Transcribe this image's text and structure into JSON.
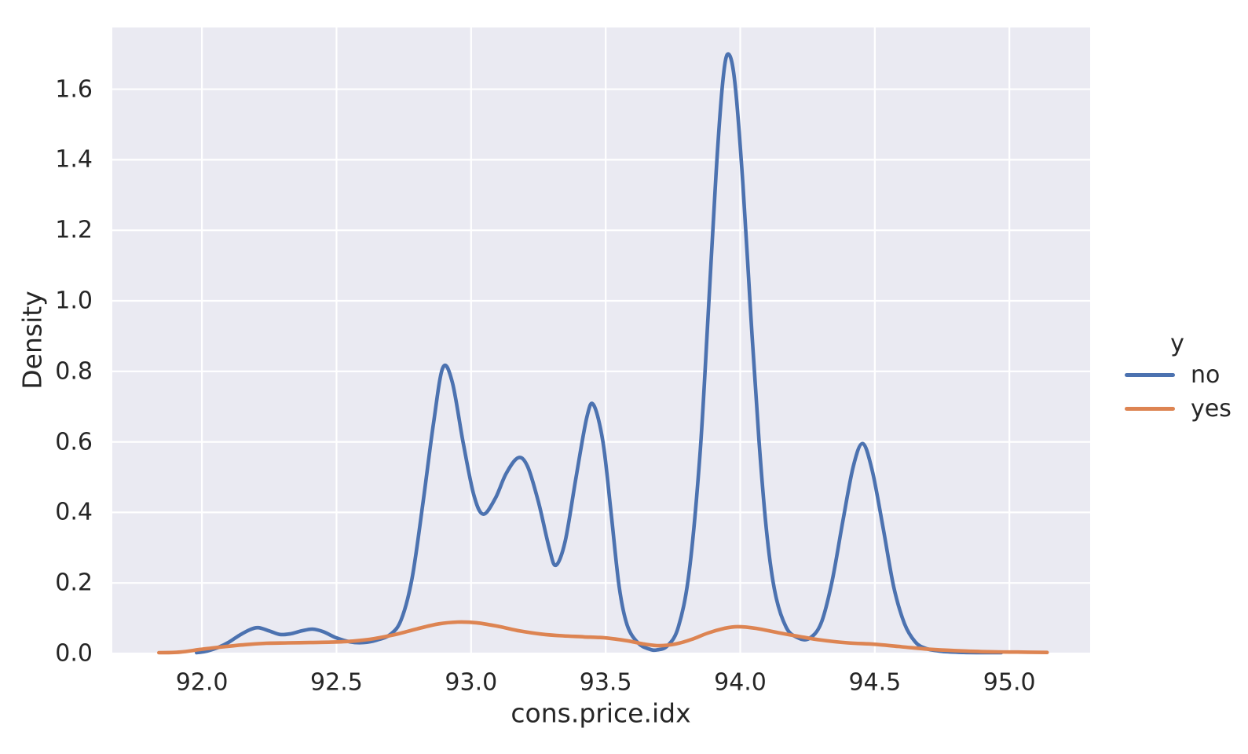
{
  "figure": {
    "background": "#ffffff",
    "plot_background": "#eaeaf2",
    "grid_color": "#ffffff",
    "text_color": "#262626"
  },
  "legend": {
    "title": "y",
    "items": [
      {
        "label": "no",
        "color": "#4c72b0"
      },
      {
        "label": "yes",
        "color": "#dd8452"
      }
    ]
  },
  "chart_data": {
    "type": "line",
    "subtype": "kde-density",
    "title": "",
    "xlabel": "cons.price.idx",
    "ylabel": "Density",
    "legend_title": "y",
    "legend_position": "right-outside",
    "grid": true,
    "xlim": [
      91.667,
      95.3
    ],
    "ylim": [
      0,
      1.775
    ],
    "xticks": [
      92.0,
      92.5,
      93.0,
      93.5,
      94.0,
      94.5,
      95.0
    ],
    "xtick_labels": [
      "92.0",
      "92.5",
      "93.0",
      "93.5",
      "94.0",
      "94.5",
      "95.0"
    ],
    "yticks": [
      0.0,
      0.2,
      0.4,
      0.6,
      0.8,
      1.0,
      1.2,
      1.4,
      1.6
    ],
    "ytick_labels": [
      "0.0",
      "0.2",
      "0.4",
      "0.6",
      "0.8",
      "1.0",
      "1.2",
      "1.4",
      "1.6"
    ],
    "series": [
      {
        "name": "no",
        "color": "#4c72b0",
        "points": [
          [
            91.98,
            0.002
          ],
          [
            92.02,
            0.007
          ],
          [
            92.06,
            0.017
          ],
          [
            92.1,
            0.032
          ],
          [
            92.14,
            0.052
          ],
          [
            92.18,
            0.068
          ],
          [
            92.21,
            0.073
          ],
          [
            92.25,
            0.064
          ],
          [
            92.29,
            0.054
          ],
          [
            92.33,
            0.056
          ],
          [
            92.37,
            0.064
          ],
          [
            92.41,
            0.069
          ],
          [
            92.45,
            0.062
          ],
          [
            92.5,
            0.044
          ],
          [
            92.55,
            0.033
          ],
          [
            92.6,
            0.031
          ],
          [
            92.65,
            0.038
          ],
          [
            92.7,
            0.054
          ],
          [
            92.74,
            0.095
          ],
          [
            92.78,
            0.21
          ],
          [
            92.82,
            0.42
          ],
          [
            92.86,
            0.65
          ],
          [
            92.895,
            0.81
          ],
          [
            92.93,
            0.77
          ],
          [
            92.97,
            0.6
          ],
          [
            93.01,
            0.45
          ],
          [
            93.045,
            0.395
          ],
          [
            93.09,
            0.44
          ],
          [
            93.13,
            0.51
          ],
          [
            93.175,
            0.555
          ],
          [
            93.21,
            0.53
          ],
          [
            93.25,
            0.43
          ],
          [
            93.29,
            0.3
          ],
          [
            93.315,
            0.25
          ],
          [
            93.35,
            0.32
          ],
          [
            93.39,
            0.5
          ],
          [
            93.43,
            0.67
          ],
          [
            93.455,
            0.705
          ],
          [
            93.49,
            0.6
          ],
          [
            93.52,
            0.4
          ],
          [
            93.55,
            0.19
          ],
          [
            93.58,
            0.08
          ],
          [
            93.62,
            0.03
          ],
          [
            93.66,
            0.013
          ],
          [
            93.69,
            0.01
          ],
          [
            93.73,
            0.022
          ],
          [
            93.77,
            0.075
          ],
          [
            93.81,
            0.23
          ],
          [
            93.85,
            0.56
          ],
          [
            93.88,
            0.95
          ],
          [
            93.91,
            1.36
          ],
          [
            93.935,
            1.62
          ],
          [
            93.955,
            1.7
          ],
          [
            93.98,
            1.62
          ],
          [
            94.01,
            1.33
          ],
          [
            94.04,
            0.95
          ],
          [
            94.07,
            0.6
          ],
          [
            94.1,
            0.33
          ],
          [
            94.13,
            0.17
          ],
          [
            94.17,
            0.075
          ],
          [
            94.21,
            0.046
          ],
          [
            94.255,
            0.042
          ],
          [
            94.3,
            0.085
          ],
          [
            94.34,
            0.2
          ],
          [
            94.38,
            0.37
          ],
          [
            94.42,
            0.53
          ],
          [
            94.455,
            0.595
          ],
          [
            94.49,
            0.52
          ],
          [
            94.53,
            0.36
          ],
          [
            94.57,
            0.19
          ],
          [
            94.61,
            0.085
          ],
          [
            94.65,
            0.033
          ],
          [
            94.69,
            0.014
          ],
          [
            94.75,
            0.006
          ],
          [
            94.83,
            0.003
          ],
          [
            94.97,
            0.001
          ]
        ]
      },
      {
        "name": "yes",
        "color": "#dd8452",
        "points": [
          [
            91.84,
            0.001
          ],
          [
            91.92,
            0.004
          ],
          [
            92.0,
            0.012
          ],
          [
            92.08,
            0.019
          ],
          [
            92.16,
            0.025
          ],
          [
            92.24,
            0.029
          ],
          [
            92.32,
            0.03
          ],
          [
            92.4,
            0.031
          ],
          [
            92.48,
            0.032
          ],
          [
            92.56,
            0.035
          ],
          [
            92.64,
            0.042
          ],
          [
            92.72,
            0.054
          ],
          [
            92.8,
            0.07
          ],
          [
            92.88,
            0.084
          ],
          [
            92.95,
            0.089
          ],
          [
            93.02,
            0.087
          ],
          [
            93.1,
            0.077
          ],
          [
            93.18,
            0.064
          ],
          [
            93.26,
            0.055
          ],
          [
            93.34,
            0.05
          ],
          [
            93.42,
            0.047
          ],
          [
            93.5,
            0.044
          ],
          [
            93.58,
            0.036
          ],
          [
            93.64,
            0.027
          ],
          [
            93.7,
            0.022
          ],
          [
            93.76,
            0.027
          ],
          [
            93.82,
            0.04
          ],
          [
            93.88,
            0.058
          ],
          [
            93.94,
            0.071
          ],
          [
            93.99,
            0.076
          ],
          [
            94.06,
            0.071
          ],
          [
            94.14,
            0.059
          ],
          [
            94.22,
            0.048
          ],
          [
            94.3,
            0.038
          ],
          [
            94.4,
            0.03
          ],
          [
            94.5,
            0.026
          ],
          [
            94.6,
            0.019
          ],
          [
            94.7,
            0.012
          ],
          [
            94.8,
            0.008
          ],
          [
            94.92,
            0.005
          ],
          [
            95.03,
            0.004
          ],
          [
            95.14,
            0.003
          ]
        ]
      }
    ]
  }
}
